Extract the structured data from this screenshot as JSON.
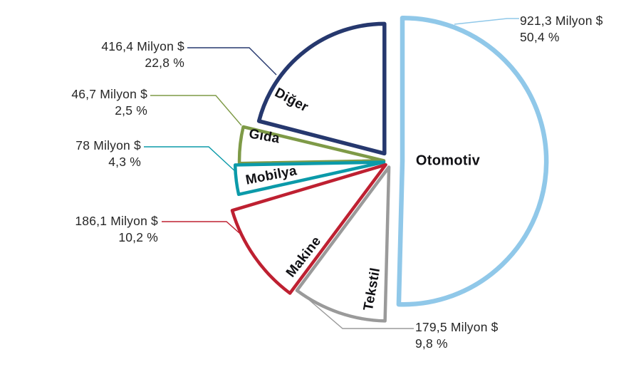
{
  "chart_data": {
    "type": "pie",
    "title": "",
    "unit": "Milyon $",
    "style": "exploded-outline-donutless, white-filled wedges with colored outlines",
    "slices": [
      {
        "label": "Otomotiv",
        "amount": 921.3,
        "percent": 50.4,
        "amount_label": "921,3 Milyon $",
        "percent_label": "50,4 %",
        "color": "#90C8E9"
      },
      {
        "label": "Tekstil",
        "amount": 179.5,
        "percent": 9.8,
        "amount_label": "179,5 Milyon $",
        "percent_label": "9,8 %",
        "color": "#9A9A9A"
      },
      {
        "label": "Makine",
        "amount": 186.1,
        "percent": 10.2,
        "amount_label": "186,1 Milyon $",
        "percent_label": "10,2 %",
        "color": "#BE2031"
      },
      {
        "label": "Mobilya",
        "amount": 78,
        "percent": 4.3,
        "amount_label": "78 Milyon $",
        "percent_label": "4,3 %",
        "color": "#0B9AA9"
      },
      {
        "label": "Gıda",
        "amount": 46.7,
        "percent": 2.5,
        "amount_label": "46,7 Milyon $",
        "percent_label": "2,5 %",
        "color": "#7E9A47"
      },
      {
        "label": "Diğer",
        "amount": 416.4,
        "percent": 22.8,
        "amount_label": "416,4 Milyon $",
        "percent_label": "22,8 %",
        "color": "#26386E"
      }
    ],
    "text_color": "#262626",
    "background_color": "#FFFFFF",
    "legend_position": "none",
    "data_label_style": "leader lines to amount + percent callouts"
  }
}
